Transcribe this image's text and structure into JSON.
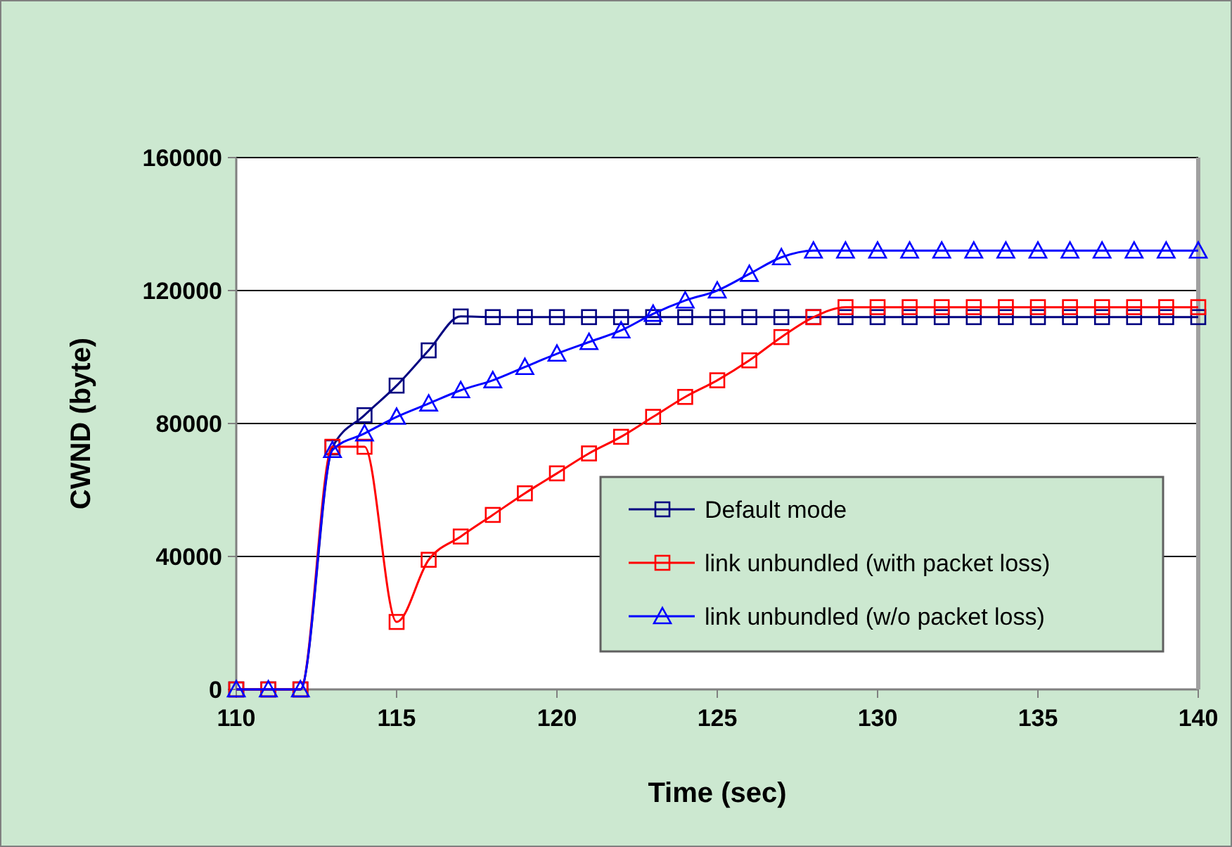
{
  "chart_data": {
    "type": "line",
    "xlabel": "Time (sec)",
    "ylabel": "CWND (byte)",
    "x": [
      110,
      111,
      112,
      113,
      114,
      115,
      116,
      117,
      118,
      119,
      120,
      121,
      122,
      123,
      124,
      125,
      126,
      127,
      128,
      129,
      130,
      131,
      132,
      133,
      134,
      135,
      136,
      137,
      138,
      139,
      140
    ],
    "xlim": [
      110,
      140
    ],
    "xticks": [
      110,
      115,
      120,
      125,
      130,
      135,
      140
    ],
    "ylim": [
      0,
      160000
    ],
    "yticks": [
      0,
      40000,
      80000,
      120000,
      160000
    ],
    "grid": "y",
    "legend": "bottom right",
    "line_style": "solid",
    "series": [
      {
        "name": "Default mode",
        "color": "#000080",
        "marker": "square",
        "values": [
          0,
          0,
          0,
          72800,
          82500,
          91400,
          102000,
          112200,
          112000,
          112000,
          112000,
          112000,
          112000,
          112000,
          112000,
          112000,
          112000,
          112000,
          112000,
          112000,
          112000,
          112000,
          112000,
          112000,
          112000,
          112000,
          112000,
          112000,
          112000,
          112000,
          112000
        ]
      },
      {
        "name": "link unbundled (with packet loss)",
        "color": "#ff0000",
        "marker": "square",
        "values": [
          0,
          0,
          0,
          73000,
          73000,
          20300,
          39000,
          46000,
          52500,
          59000,
          65000,
          71000,
          76000,
          82000,
          88000,
          93000,
          99000,
          106000,
          112000,
          115000,
          115000,
          115000,
          115000,
          115000,
          115000,
          115000,
          115000,
          115000,
          115000,
          115000,
          115000
        ]
      },
      {
        "name": "link unbundled (w/o packet loss)",
        "color": "#0000ff",
        "marker": "triangle",
        "values": [
          0,
          0,
          0,
          72000,
          77000,
          82000,
          86000,
          90000,
          93000,
          97000,
          101000,
          104500,
          108000,
          113000,
          117000,
          120000,
          125000,
          130000,
          132000,
          132000,
          132000,
          132000,
          132000,
          132000,
          132000,
          132000,
          132000,
          132000,
          132000,
          132000,
          132000
        ]
      }
    ]
  }
}
